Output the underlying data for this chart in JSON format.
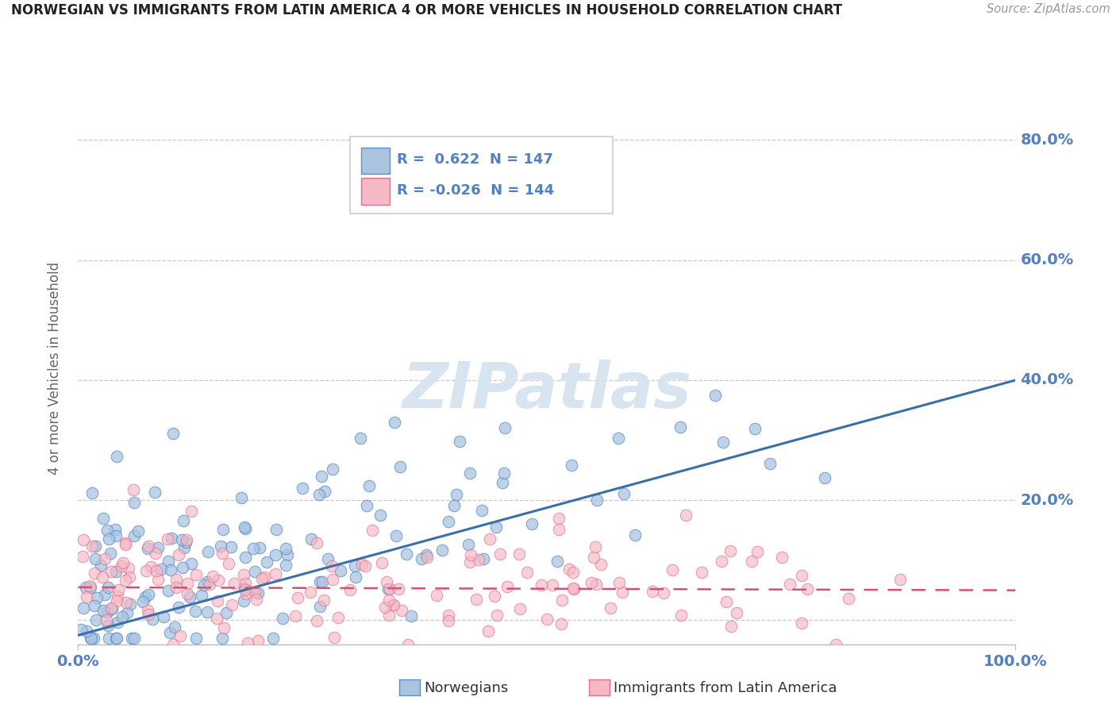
{
  "title": "NORWEGIAN VS IMMIGRANTS FROM LATIN AMERICA 4 OR MORE VEHICLES IN HOUSEHOLD CORRELATION CHART",
  "source": "Source: ZipAtlas.com",
  "ylabel": "4 or more Vehicles in Household",
  "xlim": [
    0.0,
    1.0
  ],
  "ylim": [
    -0.04,
    0.88
  ],
  "norwegian_R": 0.622,
  "norwegian_N": 147,
  "immigrant_R": -0.026,
  "immigrant_N": 144,
  "norwegian_color": "#aac4e0",
  "norwegian_edge_color": "#5b8fc9",
  "norwegian_line_color": "#3a6faa",
  "immigrant_color": "#f5b8c4",
  "immigrant_edge_color": "#e07090",
  "immigrant_line_color": "#d94f6e",
  "background_color": "#ffffff",
  "grid_color": "#c8c8c8",
  "yticks": [
    0.0,
    0.2,
    0.4,
    0.6,
    0.8
  ],
  "ytick_labels": [
    "",
    "20.0%",
    "40.0%",
    "60.0%",
    "80.0%"
  ],
  "xtick_labels": [
    "0.0%",
    "100.0%"
  ],
  "tick_color": "#5580c0",
  "watermark_color": "#d8e4f0",
  "watermark_text": "ZIPatlas",
  "legend_nor_label": "R =  0.622  N = 147",
  "legend_imm_label": "R = -0.026  N = 144",
  "bottom_label_nor": "Norwegians",
  "bottom_label_imm": "Immigrants from Latin America"
}
